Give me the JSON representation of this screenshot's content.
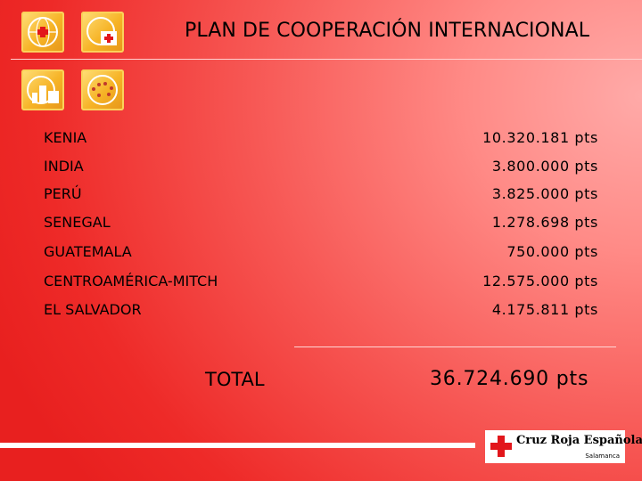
{
  "title": "PLAN DE COOPERACIÓN INTERNACIONAL",
  "rows": [
    {
      "country": "KENIA",
      "amount": "10.320.181 pts"
    },
    {
      "country": "INDIA",
      "amount": "3.800.000 pts"
    },
    {
      "country": "PERÚ",
      "amount": "3.825.000 pts"
    },
    {
      "country": "SENEGAL",
      "amount": "1.278.698 pts"
    },
    {
      "country": "GUATEMALA",
      "amount": "750.000 pts"
    },
    {
      "country": "CENTROAMÉRICA-MITCH",
      "amount": "12.575.000 pts"
    },
    {
      "country": "EL SALVADOR",
      "amount": "4.175.811 pts"
    }
  ],
  "total": {
    "label": "TOTAL",
    "value": "36.724.690 pts"
  },
  "logo": {
    "brand": "Cruz Roja Española",
    "city": "Salamanca"
  },
  "icons": [
    "globe-cross-icon",
    "globe-aid-box-icon",
    "globe-building-icon",
    "globe-people-icon"
  ],
  "colors": {
    "background": "#f04040",
    "icon_gold": "#f6b326",
    "red_cross": "#e2161b"
  }
}
